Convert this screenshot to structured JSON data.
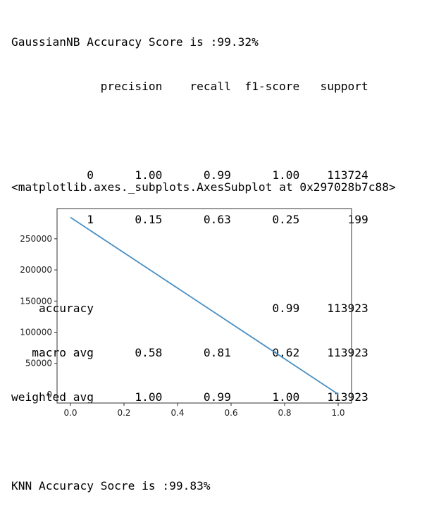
{
  "output": {
    "gaussian_accuracy": "GaussianNB Accuracy Score is :99.32%",
    "report": {
      "header": [
        "precision",
        "recall",
        "f1-score",
        "support"
      ],
      "class_rows": [
        {
          "label": "0",
          "precision": "1.00",
          "recall": "0.99",
          "f1": "1.00",
          "support": "113724"
        },
        {
          "label": "1",
          "precision": "0.15",
          "recall": "0.63",
          "f1": "0.25",
          "support": "199"
        }
      ],
      "summary_rows": [
        {
          "label": "accuracy",
          "precision": "",
          "recall": "",
          "f1": "0.99",
          "support": "113923"
        },
        {
          "label": "macro avg",
          "precision": "0.58",
          "recall": "0.81",
          "f1": "0.62",
          "support": "113923"
        },
        {
          "label": "weighted avg",
          "precision": "1.00",
          "recall": "0.99",
          "f1": "1.00",
          "support": "113923"
        }
      ]
    },
    "knn_accuracy": "KNN Accuracy Socre is :99.83%",
    "axes_repr": "<matplotlib.axes._subplots.AxesSubplot at 0x297028b7c88>"
  },
  "chart_data": {
    "type": "line",
    "series": [
      {
        "x": [
          0.0,
          1.0
        ],
        "y": [
          284315,
          492
        ],
        "color": "#4a90c4"
      }
    ],
    "xticks": [
      "0.0",
      "0.2",
      "0.4",
      "0.6",
      "0.8",
      "1.0"
    ],
    "yticks": [
      "0",
      "50000",
      "100000",
      "150000",
      "200000",
      "250000"
    ],
    "xlim": [
      -0.05,
      1.05
    ],
    "ylim": [
      -13700,
      298500
    ],
    "grid": false,
    "title": "",
    "xlabel": "",
    "ylabel": ""
  }
}
